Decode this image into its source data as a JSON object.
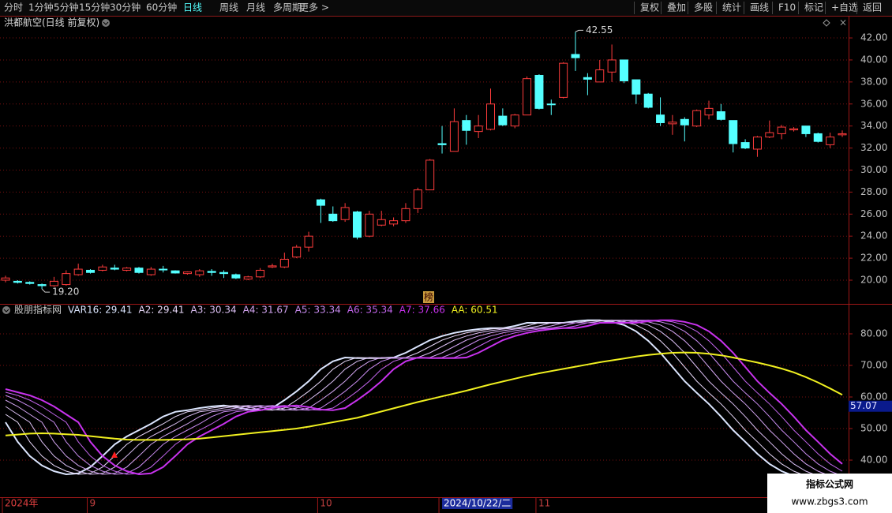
{
  "toolbar": {
    "left": [
      {
        "label": "分时"
      },
      {
        "label": "1分钟"
      },
      {
        "label": "5分钟"
      },
      {
        "label": "15分钟"
      },
      {
        "label": "30分钟"
      },
      {
        "label": "60分钟"
      },
      {
        "label": "日线",
        "active": true
      },
      {
        "label": "周线"
      },
      {
        "label": "月线"
      },
      {
        "label": "多周期"
      },
      {
        "label": "更多 >"
      }
    ],
    "right": [
      {
        "label": "复权"
      },
      {
        "label": "叠加"
      },
      {
        "label": "多股"
      },
      {
        "label": "统计"
      },
      {
        "label": "画线"
      },
      {
        "label": "F10"
      },
      {
        "label": "标记"
      },
      {
        "label": "+自选"
      },
      {
        "label": "返回"
      }
    ]
  },
  "watermark": {
    "title": "指标公式网",
    "url": "www.zbgs3.com"
  },
  "chart_data": [
    {
      "type": "candlestick",
      "title": "洪都航空(日线 前复权)",
      "badge": "榜",
      "up_color": "#ff3c3c",
      "down_color": "#54ffff",
      "grid": true,
      "ylim": [
        17.85,
        42.72
      ],
      "yticks": [
        {
          "value": 20,
          "label": "20.00"
        },
        {
          "value": 22,
          "label": "22.00"
        },
        {
          "value": 24,
          "label": "24.00"
        },
        {
          "value": 26,
          "label": "26.00"
        },
        {
          "value": 28,
          "label": "28.00"
        },
        {
          "value": 30,
          "label": "30.00"
        },
        {
          "value": 32,
          "label": "32.00"
        },
        {
          "value": 34,
          "label": "34.00"
        },
        {
          "value": 36,
          "label": "36.00"
        },
        {
          "value": 38,
          "label": "38.00"
        },
        {
          "value": 40,
          "label": "40.00"
        },
        {
          "value": 42,
          "label": "42.00"
        }
      ],
      "annotations": [
        {
          "label": "42.55",
          "value": 42.55,
          "of": "high"
        },
        {
          "label": "19.20",
          "value": 19.2,
          "of": "low"
        }
      ],
      "open": [
        20.0,
        19.9,
        19.8,
        19.6,
        19.5,
        19.6,
        20.5,
        20.9,
        20.9,
        21.1,
        20.9,
        21.1,
        20.5,
        21.0,
        20.85,
        20.6,
        20.5,
        20.8,
        20.7,
        20.5,
        20.1,
        20.3,
        21.2,
        21.2,
        22.1,
        23.0,
        27.3,
        26.0,
        25.5,
        26.2,
        24.0,
        25.0,
        25.1,
        25.4,
        26.5,
        28.2,
        32.4,
        31.7,
        34.5,
        33.5,
        33.7,
        34.9,
        34.0,
        35.0,
        38.6,
        36.0,
        36.6,
        40.5,
        38.4,
        38.0,
        38.9,
        40.0,
        38.2,
        36.9,
        35.0,
        34.2,
        34.6,
        34.0,
        35.0,
        35.3,
        34.5,
        32.5,
        31.9,
        33.0,
        33.3,
        33.65,
        34.0,
        33.3,
        32.3,
        33.2
      ],
      "high": [
        20.4,
        20.0,
        19.9,
        19.7,
        20.3,
        20.9,
        21.5,
        21.0,
        21.4,
        21.4,
        21.2,
        21.2,
        21.2,
        21.3,
        20.9,
        20.8,
        21.0,
        21.0,
        20.9,
        20.6,
        20.4,
        21.1,
        21.5,
        22.5,
        23.2,
        24.4,
        27.4,
        26.7,
        27.0,
        26.3,
        26.3,
        26.3,
        25.7,
        27.0,
        28.4,
        31.0,
        34.0,
        35.6,
        35.0,
        35.0,
        37.4,
        35.6,
        35.1,
        38.5,
        38.7,
        36.4,
        39.8,
        42.55,
        38.8,
        40.0,
        41.4,
        40.0,
        38.2,
        37.0,
        36.6,
        35.0,
        34.8,
        35.5,
        36.3,
        36.0,
        34.5,
        32.8,
        33.1,
        34.5,
        34.1,
        33.9,
        34.0,
        33.4,
        33.4,
        33.6
      ],
      "low": [
        19.8,
        19.7,
        19.6,
        19.2,
        19.4,
        19.5,
        20.4,
        20.6,
        20.8,
        20.9,
        20.8,
        20.6,
        20.4,
        20.7,
        20.6,
        20.5,
        20.3,
        20.4,
        20.2,
        20.1,
        20.0,
        20.2,
        21.1,
        21.1,
        22.0,
        22.6,
        25.2,
        25.3,
        25.3,
        23.7,
        23.9,
        24.9,
        24.9,
        25.2,
        26.1,
        28.2,
        31.5,
        31.7,
        32.3,
        32.9,
        33.6,
        34.0,
        33.8,
        35.0,
        35.5,
        35.0,
        36.5,
        39.0,
        36.8,
        38.0,
        38.0,
        37.9,
        36.0,
        35.6,
        34.0,
        33.2,
        32.6,
        33.9,
        34.6,
        34.5,
        31.6,
        31.9,
        31.2,
        32.9,
        32.8,
        33.5,
        33.0,
        32.5,
        32.0,
        33.0
      ],
      "close": [
        20.2,
        19.8,
        19.7,
        19.5,
        19.9,
        20.6,
        21.0,
        20.7,
        21.2,
        21.0,
        21.1,
        20.7,
        21.0,
        20.95,
        20.65,
        20.75,
        20.85,
        20.7,
        20.6,
        20.2,
        20.3,
        20.9,
        21.3,
        21.9,
        23.0,
        24.0,
        26.8,
        25.4,
        26.6,
        23.9,
        26.0,
        25.5,
        25.4,
        26.5,
        28.2,
        30.9,
        32.3,
        34.4,
        33.6,
        34.0,
        36.0,
        34.1,
        35.0,
        38.3,
        35.6,
        35.95,
        39.7,
        40.2,
        38.25,
        39.1,
        40.0,
        38.1,
        36.9,
        35.7,
        34.3,
        34.35,
        34.1,
        35.4,
        35.6,
        34.6,
        32.4,
        32.0,
        33.0,
        33.4,
        33.9,
        33.75,
        33.3,
        32.6,
        33.0,
        33.3
      ]
    },
    {
      "type": "line",
      "title": "股朋指标网",
      "grid": true,
      "ylim": [
        28.25,
        89.25
      ],
      "yticks": [
        {
          "value": 40,
          "label": "40.00"
        },
        {
          "value": 50,
          "label": "50.00"
        },
        {
          "value": 60,
          "label": "60.00"
        },
        {
          "value": 70,
          "label": "70.00"
        },
        {
          "value": 80,
          "label": "80.00"
        }
      ],
      "last_value": {
        "value": 57.07,
        "label": "57.07"
      },
      "cursor_category": 36,
      "categories": [
        "2024年",
        null,
        null,
        null,
        null,
        null,
        null,
        "9",
        null,
        null,
        null,
        null,
        null,
        null,
        null,
        null,
        null,
        null,
        null,
        null,
        null,
        null,
        null,
        null,
        null,
        null,
        "10",
        null,
        null,
        null,
        null,
        null,
        null,
        null,
        null,
        null,
        "2024/10/22/二",
        null,
        null,
        null,
        null,
        null,
        null,
        null,
        "11",
        null,
        null,
        null,
        null,
        null,
        null,
        null,
        null,
        null,
        null,
        null,
        null,
        null,
        null,
        null,
        null,
        null,
        null,
        null,
        null,
        null,
        null,
        null,
        null,
        null
      ],
      "series": [
        {
          "name": "VAR16",
          "legend_label": "VAR16: 29.41",
          "color": "#dce6ff",
          "width": 2,
          "values": [
            52,
            45.8,
            41.3,
            38.3,
            36.5,
            35.5,
            35.8,
            37.8,
            41.3,
            45,
            47.5,
            49.5,
            51.5,
            53.8,
            55.3,
            55.8,
            56.5,
            57,
            57.3,
            56.8,
            56,
            55.8,
            56.5,
            59,
            61.8,
            65,
            68.8,
            71.3,
            72.5,
            72.3,
            72.3,
            72.3,
            72.5,
            74,
            76,
            78,
            79.3,
            80.3,
            81,
            81.5,
            81.8,
            81.8,
            82.5,
            83.5,
            83.5,
            83.5,
            83.5,
            84,
            84.3,
            84.3,
            83.8,
            82.8,
            80.8,
            77.8,
            74,
            69.5,
            65,
            61.3,
            57.8,
            53.8,
            49.5,
            45.8,
            42,
            38.8,
            36.5,
            35,
            33.3,
            31.8,
            30.3,
            28.8
          ]
        },
        {
          "name": "A2",
          "legend_label": "A2: 29.41",
          "color": "#e8d8f8",
          "width": 1,
          "values": [
            54.5,
            52,
            45.8,
            41.3,
            38.3,
            36.5,
            35.5,
            35.8,
            37.8,
            41.3,
            45,
            47.5,
            49.5,
            51.5,
            53.8,
            55.3,
            55.8,
            56.5,
            57,
            57.3,
            56.8,
            56,
            55.8,
            56.5,
            59,
            61.8,
            65,
            68.8,
            71.3,
            72.5,
            72.3,
            72.3,
            72.3,
            72.5,
            74,
            76,
            78,
            79.3,
            80.3,
            81,
            81.5,
            81.8,
            81.8,
            82.5,
            83.5,
            83.5,
            83.5,
            83.5,
            84,
            84.3,
            84.3,
            83.8,
            82.8,
            80.8,
            77.8,
            74,
            69.5,
            65,
            61.3,
            57.8,
            53.8,
            49.5,
            45.8,
            42,
            38.8,
            36.5,
            35,
            33.3,
            31.8,
            30.3
          ]
        },
        {
          "name": "A3",
          "legend_label": "A3: 30.34",
          "color": "#dcc0f4",
          "width": 1,
          "values": [
            57,
            54.5,
            52,
            45.8,
            41.3,
            38.3,
            36.5,
            35.5,
            35.8,
            37.8,
            41.3,
            45,
            47.5,
            49.5,
            51.5,
            53.8,
            55.3,
            55.8,
            56.5,
            57,
            57.3,
            56.8,
            56,
            55.8,
            56.5,
            59,
            61.8,
            65,
            68.8,
            71.3,
            72.5,
            72.3,
            72.3,
            72.3,
            72.5,
            74,
            76,
            78,
            79.3,
            80.3,
            81,
            81.5,
            81.8,
            81.8,
            82.5,
            83.5,
            83.5,
            83.5,
            83.5,
            84,
            84.3,
            84.3,
            83.8,
            82.8,
            80.8,
            77.8,
            74,
            69.5,
            65,
            61.3,
            57.8,
            53.8,
            49.5,
            45.8,
            42,
            38.8,
            36.5,
            35,
            33.3,
            31.8
          ]
        },
        {
          "name": "A4",
          "legend_label": "A4: 31.67",
          "color": "#d4a6f2",
          "width": 1,
          "values": [
            59,
            57,
            54.5,
            52,
            45.8,
            41.3,
            38.3,
            36.5,
            35.5,
            35.8,
            37.8,
            41.3,
            45,
            47.5,
            49.5,
            51.5,
            53.8,
            55.3,
            55.8,
            56.5,
            57,
            57.3,
            56.8,
            56,
            55.8,
            56.5,
            59,
            61.8,
            65,
            68.8,
            71.3,
            72.5,
            72.3,
            72.3,
            72.3,
            72.5,
            74,
            76,
            78,
            79.3,
            80.3,
            81,
            81.5,
            81.8,
            81.8,
            82.5,
            83.5,
            83.5,
            83.5,
            83.5,
            84,
            84.3,
            84.3,
            83.8,
            82.8,
            80.8,
            77.8,
            74,
            69.5,
            65,
            61.3,
            57.8,
            53.8,
            49.5,
            45.8,
            42,
            38.8,
            36.5,
            35,
            33.3
          ]
        },
        {
          "name": "A5",
          "legend_label": "A5: 33.34",
          "color": "#c98cf0",
          "width": 1,
          "values": [
            60.5,
            59,
            57,
            54.5,
            52,
            45.8,
            41.3,
            38.3,
            36.5,
            35.5,
            35.8,
            37.8,
            41.3,
            45,
            47.5,
            49.5,
            51.5,
            53.8,
            55.3,
            55.8,
            56.5,
            57,
            57.3,
            56.8,
            56,
            55.8,
            56.5,
            59,
            61.8,
            65,
            68.8,
            71.3,
            72.5,
            72.3,
            72.3,
            72.3,
            72.5,
            74,
            76,
            78,
            79.3,
            80.3,
            81,
            81.5,
            81.8,
            81.8,
            82.5,
            83.5,
            83.5,
            83.5,
            83.5,
            84,
            84.3,
            84.3,
            83.8,
            82.8,
            80.8,
            77.8,
            74,
            69.5,
            65,
            61.3,
            57.8,
            53.8,
            49.5,
            45.8,
            42,
            38.8,
            36.5,
            35
          ]
        },
        {
          "name": "A6",
          "legend_label": "A6: 35.34",
          "color": "#c466ee",
          "width": 1,
          "values": [
            61.5,
            60.5,
            59,
            57,
            54.5,
            52,
            45.8,
            41.3,
            38.3,
            36.5,
            35.5,
            35.8,
            37.8,
            41.3,
            45,
            47.5,
            49.5,
            51.5,
            53.8,
            55.3,
            55.8,
            56.5,
            57,
            57.3,
            56.8,
            56,
            55.8,
            56.5,
            59,
            61.8,
            65,
            68.8,
            71.3,
            72.5,
            72.3,
            72.3,
            72.3,
            72.5,
            74,
            76,
            78,
            79.3,
            80.3,
            81,
            81.5,
            81.8,
            81.8,
            82.5,
            83.5,
            83.5,
            83.5,
            83.5,
            84,
            84.3,
            84.3,
            83.8,
            82.8,
            80.8,
            77.8,
            74,
            69.5,
            65,
            61.3,
            57.8,
            53.8,
            49.5,
            45.8,
            42,
            38.8,
            36.5
          ]
        },
        {
          "name": "A7",
          "legend_label": "A7: 37.66",
          "color": "#c832ee",
          "width": 2,
          "values": [
            62.5,
            61.5,
            60.5,
            59,
            57,
            54.5,
            52,
            45.8,
            41.3,
            38.3,
            36.5,
            35.5,
            35.8,
            37.8,
            41.3,
            45,
            47.5,
            49.5,
            51.5,
            53.8,
            55.3,
            55.8,
            56.5,
            57,
            57.3,
            56.8,
            56,
            55.8,
            56.5,
            59,
            61.8,
            65,
            68.8,
            71.3,
            72.5,
            72.3,
            72.3,
            72.3,
            72.5,
            74,
            76,
            78,
            79.3,
            80.3,
            81,
            81.5,
            81.8,
            81.8,
            82.5,
            83.5,
            83.5,
            83.5,
            83.5,
            84,
            84.3,
            84.3,
            83.8,
            82.8,
            80.8,
            77.8,
            74,
            69.5,
            65,
            61.3,
            57.8,
            53.8,
            49.5,
            45.8,
            42,
            38.8
          ]
        },
        {
          "name": "AA",
          "legend_label": "AA: 60.51",
          "color": "#f0f020",
          "width": 2,
          "values": [
            47.8,
            48.1,
            48.4,
            48.5,
            48.4,
            48.2,
            48.0,
            47.6,
            47.2,
            46.8,
            46.5,
            46.4,
            46.4,
            46.4,
            46.5,
            46.6,
            46.8,
            47.2,
            47.6,
            48.0,
            48.4,
            48.8,
            49.2,
            49.6,
            50.0,
            50.6,
            51.3,
            52.0,
            52.7,
            53.4,
            54.4,
            55.4,
            56.4,
            57.4,
            58.4,
            59.3,
            60.2,
            61.1,
            62.0,
            63.0,
            64.0,
            64.9,
            65.8,
            66.7,
            67.5,
            68.2,
            68.9,
            69.6,
            70.3,
            71.0,
            71.6,
            72.2,
            72.8,
            73.3,
            73.7,
            74.0,
            74.1,
            74.0,
            73.7,
            73.2,
            72.5,
            71.7,
            70.9,
            70.0,
            69.0,
            67.8,
            66.3,
            64.6,
            62.7,
            60.7
          ]
        }
      ]
    }
  ]
}
